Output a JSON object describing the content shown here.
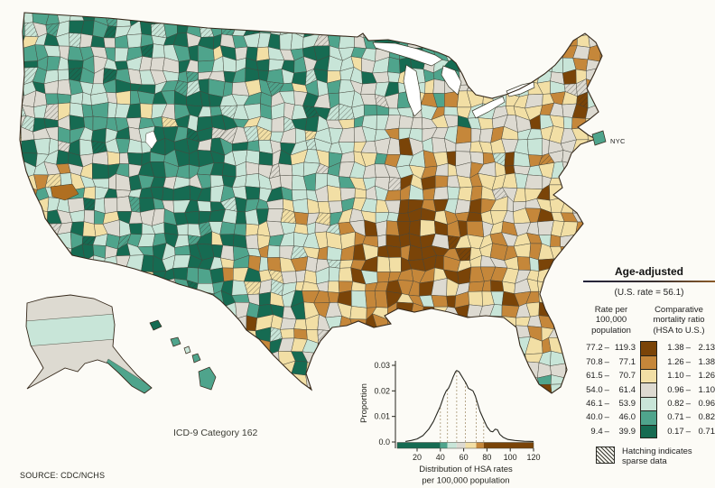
{
  "map": {
    "category_label": "ICD-9 Category 162",
    "nyc_label": "NYC"
  },
  "source_note": "SOURCE: CDC/NCHS",
  "legend": {
    "title": "Age-adjusted",
    "us_rate_note": "(U.S. rate = 56.1)",
    "rate_header": "Rate per\n100,000\npopulation",
    "ratio_header": "Comparative\nmortality ratio\n(HSA to U.S.)",
    "separator": "–",
    "rows": [
      {
        "rate_low": "77.2",
        "rate_high": "119.3",
        "ratio_low": "1.38",
        "ratio_high": "2.13",
        "color": "#7a4408"
      },
      {
        "rate_low": "70.8",
        "rate_high": "77.1",
        "ratio_low": "1.26",
        "ratio_high": "1.38",
        "color": "#c5873a"
      },
      {
        "rate_low": "61.5",
        "rate_high": "70.7",
        "ratio_low": "1.10",
        "ratio_high": "1.26",
        "color": "#f2dfa5"
      },
      {
        "rate_low": "54.0",
        "rate_high": "61.4",
        "ratio_low": "0.96",
        "ratio_high": "1.10",
        "color": "#dddad1"
      },
      {
        "rate_low": "46.1",
        "rate_high": "53.9",
        "ratio_low": "0.82",
        "ratio_high": "0.96",
        "color": "#c8e5d8"
      },
      {
        "rate_low": "40.0",
        "rate_high": "46.0",
        "ratio_low": "0.71",
        "ratio_high": "0.82",
        "color": "#4fa48c"
      },
      {
        "rate_low": "9.4",
        "rate_high": "39.9",
        "ratio_low": "0.17",
        "ratio_high": "0.71",
        "color": "#166b52"
      }
    ],
    "hatching_note": "Hatching indicates\nsparse data"
  },
  "chart_data": {
    "type": "area",
    "title": "",
    "xlabel": "Distribution of HSA rates\nper 100,000 population",
    "ylabel": "Proportion",
    "xlim": [
      10,
      120
    ],
    "ylim": [
      0,
      0.03
    ],
    "xticks": [
      20,
      40,
      60,
      80,
      100,
      120
    ],
    "ytick_labels": [
      "0.0",
      "0.01",
      "0.02",
      "0.03"
    ],
    "yticks": [
      0,
      0.01,
      0.02,
      0.03
    ],
    "class_breaks": [
      40.0,
      46.1,
      54.0,
      61.5,
      70.8,
      77.2
    ],
    "x": [
      10,
      15,
      20,
      25,
      30,
      34,
      38,
      40,
      43,
      45,
      47,
      49,
      51,
      53,
      54,
      56,
      58,
      60,
      62,
      64,
      66,
      68,
      70,
      72,
      74,
      77,
      80,
      83,
      85,
      87,
      89,
      91,
      94,
      98,
      104,
      112,
      120
    ],
    "y": [
      0.0002,
      0.0006,
      0.0012,
      0.0025,
      0.005,
      0.008,
      0.012,
      0.014,
      0.018,
      0.02,
      0.021,
      0.023,
      0.0255,
      0.0275,
      0.028,
      0.0275,
      0.026,
      0.0245,
      0.023,
      0.021,
      0.0205,
      0.02,
      0.018,
      0.015,
      0.012,
      0.009,
      0.006,
      0.0042,
      0.004,
      0.005,
      0.0048,
      0.003,
      0.0018,
      0.001,
      0.0006,
      0.0003,
      0.0002
    ]
  }
}
